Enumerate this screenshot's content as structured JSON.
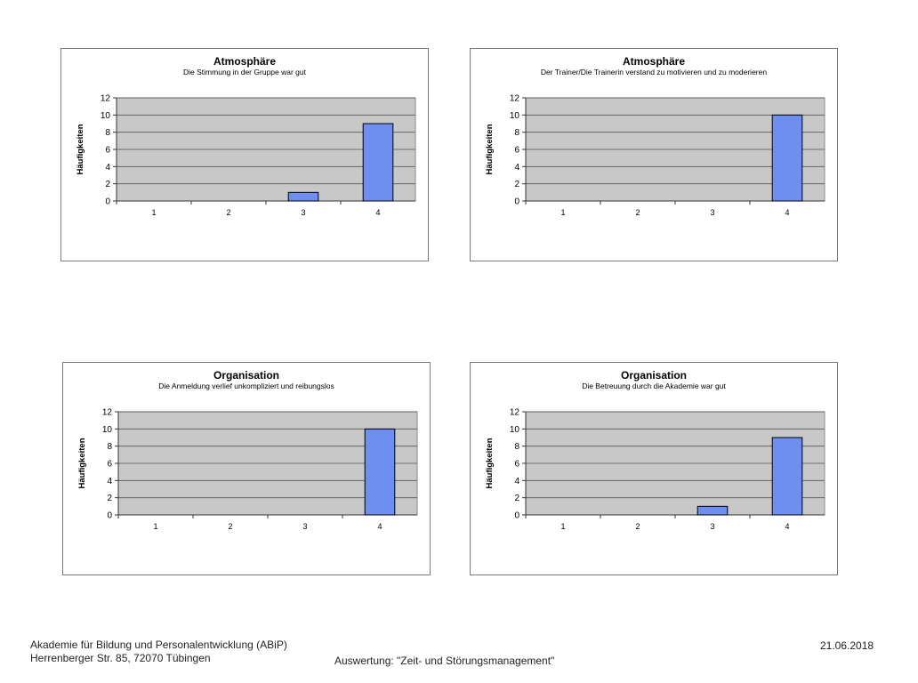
{
  "charts": [
    {
      "title": "Atmosphäre",
      "subtitle": "Die Stimmung in der Gruppe war gut"
    },
    {
      "title": "Atmosphäre",
      "subtitle": "Der Trainer/Die Trainerin verstand zu motivieren und zu moderieren"
    },
    {
      "title": "Organisation",
      "subtitle": "Die Anmeldung verlief unkompliziert und reibungslos"
    },
    {
      "title": "Organisation",
      "subtitle": "Die Betreuung durch die Akademie war gut"
    }
  ],
  "chart_data": [
    {
      "type": "bar",
      "title": "Atmosphäre",
      "subtitle": "Die Stimmung in der Gruppe war gut",
      "xlabel": "",
      "ylabel": "Häufigkeiten",
      "categories": [
        "1",
        "2",
        "3",
        "4"
      ],
      "values": [
        0,
        0,
        1,
        9
      ],
      "ylim": [
        0,
        12
      ],
      "yticks": [
        0,
        2,
        4,
        6,
        8,
        10,
        12
      ],
      "grid": true,
      "bar_color": "#6f8ff0",
      "plot_bg": "#c8c8c8"
    },
    {
      "type": "bar",
      "title": "Atmosphäre",
      "subtitle": "Der Trainer/Die Trainerin verstand zu motivieren und zu moderieren",
      "xlabel": "",
      "ylabel": "Häufigkeiten",
      "categories": [
        "1",
        "2",
        "3",
        "4"
      ],
      "values": [
        0,
        0,
        0,
        10
      ],
      "ylim": [
        0,
        12
      ],
      "yticks": [
        0,
        2,
        4,
        6,
        8,
        10,
        12
      ],
      "grid": true,
      "bar_color": "#6f8ff0",
      "plot_bg": "#c8c8c8"
    },
    {
      "type": "bar",
      "title": "Organisation",
      "subtitle": "Die Anmeldung verlief unkompliziert und reibungslos",
      "xlabel": "",
      "ylabel": "Häufigkeiten",
      "categories": [
        "1",
        "2",
        "3",
        "4"
      ],
      "values": [
        0,
        0,
        0,
        10
      ],
      "ylim": [
        0,
        12
      ],
      "yticks": [
        0,
        2,
        4,
        6,
        8,
        10,
        12
      ],
      "grid": true,
      "bar_color": "#6f8ff0",
      "plot_bg": "#c8c8c8"
    },
    {
      "type": "bar",
      "title": "Organisation",
      "subtitle": "Die Betreuung durch die Akademie war gut",
      "xlabel": "",
      "ylabel": "Häufigkeiten",
      "categories": [
        "1",
        "2",
        "3",
        "4"
      ],
      "values": [
        0,
        0,
        1,
        9
      ],
      "ylim": [
        0,
        12
      ],
      "yticks": [
        0,
        2,
        4,
        6,
        8,
        10,
        12
      ],
      "grid": true,
      "bar_color": "#6f8ff0",
      "plot_bg": "#c8c8c8"
    }
  ],
  "footer": {
    "organization": "Akademie für Bildung und Personalentwicklung (ABiP)",
    "address": "Herrenberger Str. 85, 72070 Tübingen",
    "evaluation": "Auswertung: \"Zeit- und Störungsmanagement\"",
    "date": "21.06.2018"
  }
}
